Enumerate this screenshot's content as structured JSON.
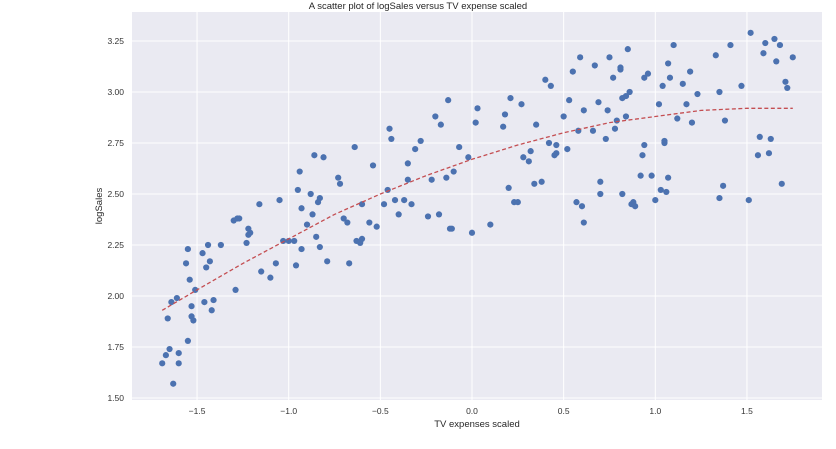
{
  "chart_data": {
    "type": "scatter",
    "title": "A scatter plot of logSales versus TV expense scaled",
    "xlabel": "TV expenses scaled",
    "ylabel": "logSales",
    "xlim": [
      -1.85,
      1.92
    ],
    "ylim": [
      1.49,
      3.35
    ],
    "xticks": [
      -1.5,
      -1.0,
      -0.5,
      0.0,
      0.5,
      1.0,
      1.5
    ],
    "xtick_labels": [
      "−1.5",
      "−1.0",
      "−0.5",
      "0.0",
      "0.5",
      "1.0",
      "1.5"
    ],
    "yticks": [
      1.5,
      1.75,
      2.0,
      2.25,
      2.5,
      2.75,
      3.0,
      3.25
    ],
    "ytick_labels": [
      "1.50",
      "1.75",
      "2.00",
      "2.25",
      "2.50",
      "2.75",
      "3.00",
      "3.25"
    ],
    "grid": true,
    "legend": null,
    "colors": {
      "background": "#eaeaf2",
      "grid": "#ffffff",
      "points": "#4c72b0",
      "fit_line": "#c44e52"
    },
    "series": [
      {
        "name": "observations",
        "kind": "scatter",
        "points": [
          [
            -1.69,
            1.67
          ],
          [
            -1.67,
            1.71
          ],
          [
            -1.66,
            1.89
          ],
          [
            -1.65,
            1.74
          ],
          [
            -1.64,
            1.97
          ],
          [
            -1.63,
            1.57
          ],
          [
            -1.61,
            1.99
          ],
          [
            -1.6,
            1.67
          ],
          [
            -1.6,
            1.72
          ],
          [
            -1.56,
            2.16
          ],
          [
            -1.55,
            2.23
          ],
          [
            -1.55,
            1.78
          ],
          [
            -1.54,
            2.08
          ],
          [
            -1.53,
            1.9
          ],
          [
            -1.53,
            1.95
          ],
          [
            -1.52,
            1.88
          ],
          [
            -1.51,
            2.03
          ],
          [
            -1.47,
            2.21
          ],
          [
            -1.46,
            1.97
          ],
          [
            -1.45,
            2.14
          ],
          [
            -1.44,
            2.25
          ],
          [
            -1.43,
            2.17
          ],
          [
            -1.42,
            1.93
          ],
          [
            -1.41,
            1.98
          ],
          [
            -1.37,
            2.25
          ],
          [
            -1.3,
            2.37
          ],
          [
            -1.29,
            2.03
          ],
          [
            -1.28,
            2.38
          ],
          [
            -1.27,
            2.38
          ],
          [
            -1.23,
            2.26
          ],
          [
            -1.22,
            2.3
          ],
          [
            -1.22,
            2.33
          ],
          [
            -1.21,
            2.31
          ],
          [
            -1.16,
            2.45
          ],
          [
            -1.15,
            2.12
          ],
          [
            -1.1,
            2.09
          ],
          [
            -1.07,
            2.16
          ],
          [
            -1.05,
            2.47
          ],
          [
            -1.03,
            2.27
          ],
          [
            -1.0,
            2.27
          ],
          [
            -0.97,
            2.27
          ],
          [
            -0.96,
            2.15
          ],
          [
            -0.95,
            2.52
          ],
          [
            -0.94,
            2.61
          ],
          [
            -0.93,
            2.43
          ],
          [
            -0.93,
            2.23
          ],
          [
            -0.9,
            2.35
          ],
          [
            -0.88,
            2.5
          ],
          [
            -0.87,
            2.4
          ],
          [
            -0.86,
            2.69
          ],
          [
            -0.85,
            2.29
          ],
          [
            -0.84,
            2.46
          ],
          [
            -0.83,
            2.48
          ],
          [
            -0.83,
            2.24
          ],
          [
            -0.81,
            2.68
          ],
          [
            -0.79,
            2.17
          ],
          [
            -0.73,
            2.58
          ],
          [
            -0.72,
            2.55
          ],
          [
            -0.7,
            2.38
          ],
          [
            -0.68,
            2.36
          ],
          [
            -0.67,
            2.16
          ],
          [
            -0.64,
            2.73
          ],
          [
            -0.63,
            2.27
          ],
          [
            -0.61,
            2.26
          ],
          [
            -0.6,
            2.28
          ],
          [
            -0.6,
            2.45
          ],
          [
            -0.56,
            2.36
          ],
          [
            -0.54,
            2.64
          ],
          [
            -0.52,
            2.34
          ],
          [
            -0.48,
            2.45
          ],
          [
            -0.46,
            2.52
          ],
          [
            -0.45,
            2.82
          ],
          [
            -0.44,
            2.77
          ],
          [
            -0.42,
            2.47
          ],
          [
            -0.4,
            2.4
          ],
          [
            -0.37,
            2.47
          ],
          [
            -0.35,
            2.57
          ],
          [
            -0.35,
            2.65
          ],
          [
            -0.33,
            2.45
          ],
          [
            -0.31,
            2.72
          ],
          [
            -0.28,
            2.76
          ],
          [
            -0.24,
            2.39
          ],
          [
            -0.22,
            2.57
          ],
          [
            -0.2,
            2.88
          ],
          [
            -0.18,
            2.4
          ],
          [
            -0.17,
            2.84
          ],
          [
            -0.14,
            2.58
          ],
          [
            -0.13,
            2.96
          ],
          [
            -0.12,
            2.33
          ],
          [
            -0.11,
            2.33
          ],
          [
            -0.1,
            2.61
          ],
          [
            -0.07,
            2.73
          ],
          [
            -0.02,
            2.68
          ],
          [
            0.0,
            2.31
          ],
          [
            0.02,
            2.85
          ],
          [
            0.03,
            2.92
          ],
          [
            0.1,
            2.35
          ],
          [
            0.17,
            2.83
          ],
          [
            0.18,
            2.89
          ],
          [
            0.2,
            2.53
          ],
          [
            0.21,
            2.97
          ],
          [
            0.23,
            2.46
          ],
          [
            0.25,
            2.46
          ],
          [
            0.27,
            2.94
          ],
          [
            0.28,
            2.68
          ],
          [
            0.31,
            2.66
          ],
          [
            0.32,
            2.71
          ],
          [
            0.34,
            2.55
          ],
          [
            0.35,
            2.84
          ],
          [
            0.38,
            2.56
          ],
          [
            0.4,
            3.06
          ],
          [
            0.42,
            2.75
          ],
          [
            0.43,
            3.03
          ],
          [
            0.45,
            2.69
          ],
          [
            0.46,
            2.74
          ],
          [
            0.46,
            2.7
          ],
          [
            0.5,
            2.88
          ],
          [
            0.52,
            2.72
          ],
          [
            0.53,
            2.96
          ],
          [
            0.55,
            3.1
          ],
          [
            0.57,
            2.46
          ],
          [
            0.58,
            2.81
          ],
          [
            0.59,
            3.17
          ],
          [
            0.6,
            2.44
          ],
          [
            0.61,
            2.91
          ],
          [
            0.61,
            2.36
          ],
          [
            0.66,
            2.81
          ],
          [
            0.67,
            3.13
          ],
          [
            0.69,
            2.95
          ],
          [
            0.7,
            2.5
          ],
          [
            0.7,
            2.56
          ],
          [
            0.73,
            2.77
          ],
          [
            0.74,
            2.91
          ],
          [
            0.75,
            3.17
          ],
          [
            0.77,
            3.07
          ],
          [
            0.78,
            2.82
          ],
          [
            0.79,
            2.86
          ],
          [
            0.81,
            3.12
          ],
          [
            0.81,
            3.11
          ],
          [
            0.82,
            2.5
          ],
          [
            0.82,
            2.97
          ],
          [
            0.84,
            2.98
          ],
          [
            0.84,
            2.88
          ],
          [
            0.85,
            3.21
          ],
          [
            0.86,
            3.0
          ],
          [
            0.87,
            2.45
          ],
          [
            0.88,
            2.46
          ],
          [
            0.89,
            2.44
          ],
          [
            0.92,
            2.59
          ],
          [
            0.93,
            2.69
          ],
          [
            0.94,
            2.74
          ],
          [
            0.94,
            3.07
          ],
          [
            0.96,
            3.09
          ],
          [
            0.98,
            2.59
          ],
          [
            1.0,
            2.47
          ],
          [
            1.02,
            2.94
          ],
          [
            1.03,
            2.52
          ],
          [
            1.04,
            3.03
          ],
          [
            1.05,
            2.75
          ],
          [
            1.05,
            2.76
          ],
          [
            1.06,
            2.51
          ],
          [
            1.07,
            3.14
          ],
          [
            1.07,
            2.58
          ],
          [
            1.08,
            3.07
          ],
          [
            1.1,
            3.23
          ],
          [
            1.12,
            2.87
          ],
          [
            1.15,
            3.04
          ],
          [
            1.17,
            2.94
          ],
          [
            1.19,
            3.1
          ],
          [
            1.2,
            2.85
          ],
          [
            1.23,
            2.99
          ],
          [
            1.33,
            3.18
          ],
          [
            1.35,
            3.0
          ],
          [
            1.35,
            2.48
          ],
          [
            1.37,
            2.54
          ],
          [
            1.38,
            2.86
          ],
          [
            1.41,
            3.23
          ],
          [
            1.47,
            3.03
          ],
          [
            1.51,
            2.47
          ],
          [
            1.52,
            3.29
          ],
          [
            1.56,
            2.69
          ],
          [
            1.57,
            2.78
          ],
          [
            1.59,
            3.19
          ],
          [
            1.6,
            3.24
          ],
          [
            1.62,
            2.7
          ],
          [
            1.63,
            2.77
          ],
          [
            1.65,
            3.26
          ],
          [
            1.66,
            3.15
          ],
          [
            1.68,
            3.23
          ],
          [
            1.69,
            2.55
          ],
          [
            1.71,
            3.05
          ],
          [
            1.72,
            3.02
          ],
          [
            1.75,
            3.17
          ]
        ]
      },
      {
        "name": "quadratic fit",
        "kind": "line",
        "style": "dashed",
        "points": [
          [
            -1.69,
            1.93
          ],
          [
            -1.5,
            2.03
          ],
          [
            -1.25,
            2.16
          ],
          [
            -1.0,
            2.28
          ],
          [
            -0.75,
            2.4
          ],
          [
            -0.5,
            2.5
          ],
          [
            -0.25,
            2.59
          ],
          [
            0.0,
            2.67
          ],
          [
            0.25,
            2.74
          ],
          [
            0.5,
            2.8
          ],
          [
            0.75,
            2.85
          ],
          [
            1.0,
            2.88
          ],
          [
            1.25,
            2.91
          ],
          [
            1.5,
            2.92
          ],
          [
            1.75,
            2.92
          ]
        ]
      }
    ]
  }
}
